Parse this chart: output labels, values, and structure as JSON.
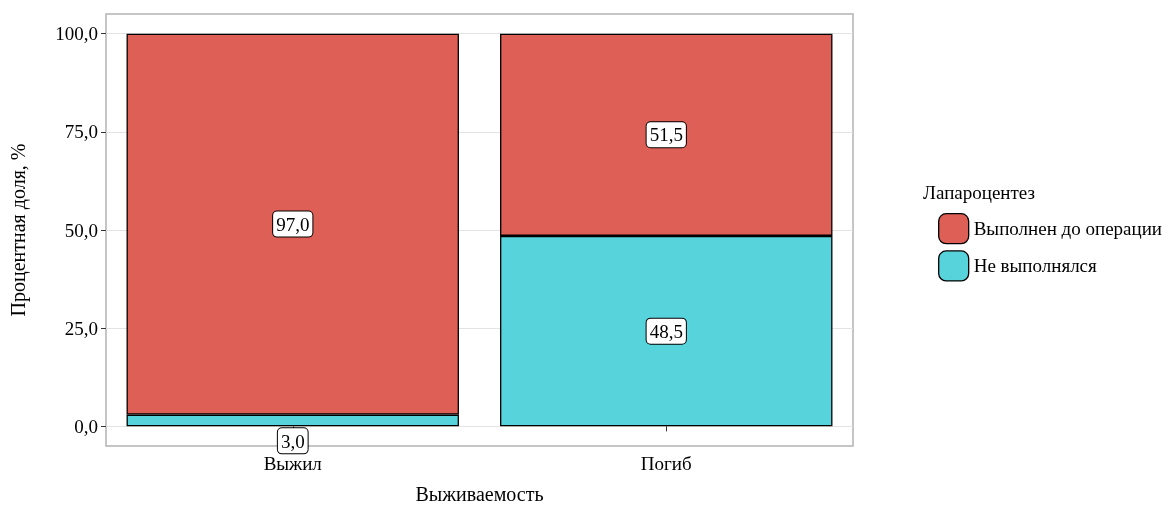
{
  "chart_data": {
    "type": "bar",
    "stacked": true,
    "xlabel": "Выживаемость",
    "ylabel": "Процентная доля, %",
    "legend_title": "Лапароцентез",
    "categories": [
      "Выжил",
      "Погиб"
    ],
    "series": [
      {
        "name": "Не выполнялся",
        "color": "#56d3db",
        "values": [
          3.0,
          48.5
        ],
        "value_labels": [
          "3,0",
          "48,5"
        ]
      },
      {
        "name": "Выполнен до операции",
        "color": "#dd5f56",
        "values": [
          97.0,
          51.5
        ],
        "value_labels": [
          "97,0",
          "51,5"
        ]
      }
    ],
    "ylim": [
      -5,
      105
    ],
    "yticks": [
      {
        "value": 0,
        "label": "0,0"
      },
      {
        "value": 25,
        "label": "25,0"
      },
      {
        "value": 50,
        "label": "50,0"
      },
      {
        "value": 75,
        "label": "75,0"
      },
      {
        "value": 100,
        "label": "100,0"
      }
    ],
    "grid": "y",
    "legend": "right"
  }
}
